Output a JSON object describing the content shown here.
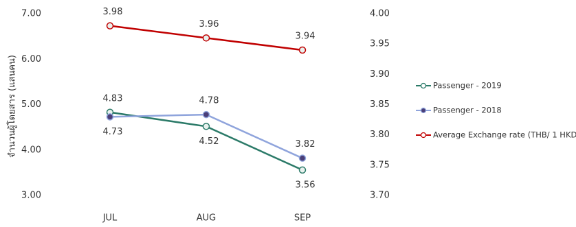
{
  "chart_data": {
    "type": "line",
    "y_label": "จำนวนผู้โดยสาร (แสนคน)",
    "categories": [
      "JUL",
      "AUG",
      "SEP"
    ],
    "ylim": [
      3,
      7
    ],
    "yticks": [
      {
        "value": 3,
        "label": "3.00"
      },
      {
        "value": 4,
        "label": "4.00"
      },
      {
        "value": 5,
        "label": "5.00"
      },
      {
        "value": 6,
        "label": "6.00"
      },
      {
        "value": 7,
        "label": "7.00"
      }
    ],
    "y2lim": [
      3.7,
      4
    ],
    "y2ticks": [
      {
        "value": 3.7,
        "label": "3.70"
      },
      {
        "value": 3.75,
        "label": "3.75"
      },
      {
        "value": 3.8,
        "label": "3.80"
      },
      {
        "value": 3.85,
        "label": "3.85"
      },
      {
        "value": 3.9,
        "label": "3.90"
      },
      {
        "value": 3.95,
        "label": "3.95"
      },
      {
        "value": 4,
        "label": "4.00"
      }
    ],
    "grid": false,
    "legend": "right",
    "series": [
      {
        "name": "Passenger - 2019",
        "color": "#2b7a68",
        "values": [
          4.83,
          4.52,
          3.56
        ]
      },
      {
        "name": "Passenger - 2018",
        "color": "#8fa4dc",
        "values": [
          4.73,
          4.78,
          3.82
        ]
      },
      {
        "name": "Average Exchange rate (THB/ 1 HKD)",
        "color": "#c00000",
        "axis": "y2",
        "values": [
          3.98,
          3.96,
          3.94
        ]
      }
    ]
  }
}
